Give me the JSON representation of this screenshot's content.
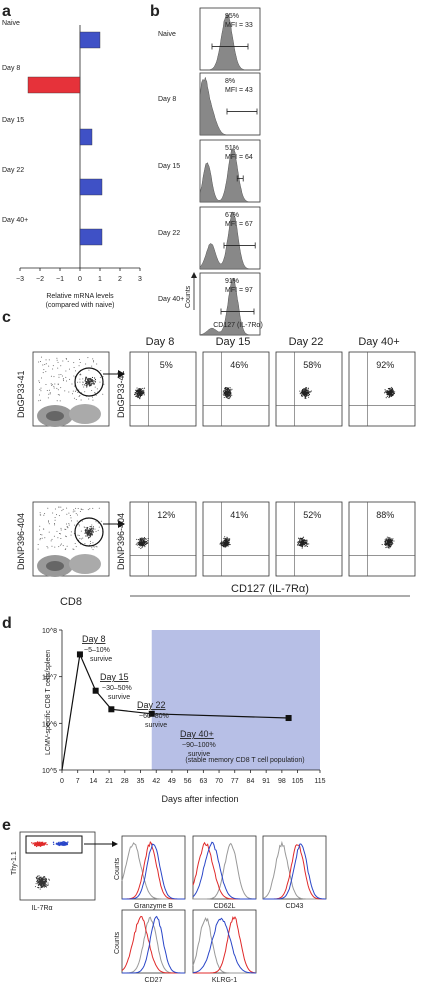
{
  "panel_letters": [
    "a",
    "b",
    "c",
    "d",
    "e"
  ],
  "panel_a": {
    "xlabel_line1": "Relative mRNA levels",
    "xlabel_line2": "(compared with naive)"
  },
  "panel_b": {
    "xlabel": "CD127 (IL-7Rα)",
    "ylabel": "Counts",
    "rows": [
      {
        "label": "Naive",
        "pct": "95%",
        "mfi": "MFI = 33"
      },
      {
        "label": "Day 8",
        "pct": "8%",
        "mfi": "MFI = 43"
      },
      {
        "label": "Day 15",
        "pct": "51%",
        "mfi": "MFI = 64"
      },
      {
        "label": "Day 22",
        "pct": "67%",
        "mfi": "MFI = 67"
      },
      {
        "label": "Day 40+",
        "pct": "91%",
        "mfi": "MFI = 97"
      }
    ]
  },
  "panel_c": {
    "headers": [
      "Day 8",
      "Day 15",
      "Day 22",
      "Day 40+"
    ],
    "row1_ylabel": "DbGP33-41",
    "row2_ylabel": "DbNP396-404",
    "row1_pct": [
      "5%",
      "46%",
      "58%",
      "92%"
    ],
    "row2_pct": [
      "12%",
      "41%",
      "52%",
      "88%"
    ],
    "left_xlabel": "CD8",
    "xlabel": "CD127 (IL-7Rα)"
  },
  "panel_d": {
    "ylabel": "LCMV-specific CD8 T cells/spleen",
    "xlabel": "Days after infection",
    "xticks": [
      "0",
      "7",
      "14",
      "21",
      "28",
      "35",
      "42",
      "49",
      "56",
      "63",
      "70",
      "77",
      "84",
      "91",
      "98",
      "105",
      "115"
    ],
    "yticks": [
      "10^5",
      "10^6",
      "10^7",
      "10^8"
    ],
    "annotations": [
      {
        "day": "Day 8",
        "range": "~5–10%",
        "word": "survive"
      },
      {
        "day": "Day 15",
        "range": "~30–50%",
        "word": "survive"
      },
      {
        "day": "Day 22",
        "range": "~60–80%",
        "word": "survive"
      },
      {
        "day": "Day 40+",
        "range": "~90–100%",
        "word": "survive"
      }
    ],
    "region_note": "(stable memory CD8 T cell population)",
    "shade_color": "#b7bfe6"
  },
  "panel_e": {
    "dot_ylabel": "Thy-1.1",
    "dot_xlabel": "IL-7Rα",
    "hist_labels": [
      "Granzyme B",
      "CD62L",
      "CD43",
      "CD27",
      "KLRG-1"
    ],
    "counts": "Counts",
    "colors": {
      "red": "#e02a2a",
      "blue": "#2a46c8",
      "gray": "#999999"
    }
  },
  "chart_data": [
    {
      "type": "bar",
      "orientation": "horizontal",
      "categories": [
        "Naive",
        "Day 8",
        "Day 15",
        "Day 22",
        "Day 40+"
      ],
      "values": [
        1.0,
        -2.6,
        0.6,
        1.1,
        1.1
      ],
      "xlim": [
        -3,
        3
      ],
      "xticks": [
        "−3",
        "−2",
        "−1",
        "0",
        "1",
        "2",
        "3"
      ],
      "xlabel": "Relative mRNA levels (compared with naive)",
      "colors": [
        "#3f51c6",
        "#e6323a",
        "#3f51c6",
        "#3f51c6",
        "#3f51c6"
      ]
    },
    {
      "type": "line",
      "x": [
        0,
        8,
        15,
        22,
        40,
        101
      ],
      "y": [
        100000,
        30000000,
        5000000,
        2000000,
        1600000,
        1300000
      ],
      "xlim": [
        0,
        115
      ],
      "ylim": [
        100000,
        100000000
      ],
      "log_y": true,
      "shaded_x": [
        40,
        115
      ]
    }
  ]
}
